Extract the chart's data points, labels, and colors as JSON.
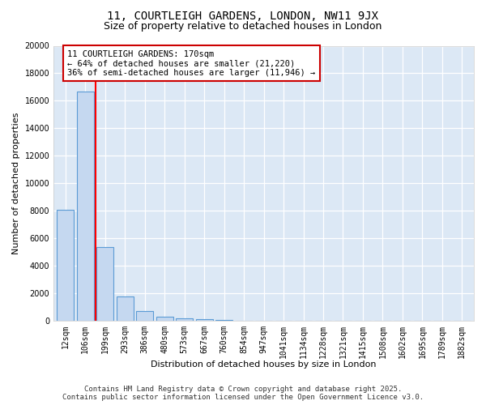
{
  "title_line1": "11, COURTLEIGH GARDENS, LONDON, NW11 9JX",
  "title_line2": "Size of property relative to detached houses in London",
  "xlabel": "Distribution of detached houses by size in London",
  "ylabel": "Number of detached properties",
  "categories": [
    "12sqm",
    "106sqm",
    "199sqm",
    "293sqm",
    "386sqm",
    "480sqm",
    "573sqm",
    "667sqm",
    "760sqm",
    "854sqm",
    "947sqm",
    "1041sqm",
    "1134sqm",
    "1228sqm",
    "1321sqm",
    "1415sqm",
    "1508sqm",
    "1602sqm",
    "1695sqm",
    "1789sqm",
    "1882sqm"
  ],
  "values": [
    8100,
    16700,
    5350,
    1800,
    700,
    320,
    200,
    130,
    50,
    0,
    0,
    0,
    0,
    0,
    0,
    0,
    0,
    0,
    0,
    0,
    0
  ],
  "bar_color": "#c5d8f0",
  "bar_edge_color": "#5b9bd5",
  "red_line_x": 1.5,
  "annotation_text": "11 COURTLEIGH GARDENS: 170sqm\n← 64% of detached houses are smaller (21,220)\n36% of semi-detached houses are larger (11,946) →",
  "annotation_box_color": "#ffffff",
  "annotation_box_edge_color": "#cc0000",
  "ylim": [
    0,
    20000
  ],
  "yticks": [
    0,
    2000,
    4000,
    6000,
    8000,
    10000,
    12000,
    14000,
    16000,
    18000,
    20000
  ],
  "fig_background_color": "#ffffff",
  "plot_background_color": "#dce8f5",
  "footer_line1": "Contains HM Land Registry data © Crown copyright and database right 2025.",
  "footer_line2": "Contains public sector information licensed under the Open Government Licence v3.0.",
  "title_fontsize": 10,
  "subtitle_fontsize": 9,
  "axis_label_fontsize": 8,
  "tick_fontsize": 7,
  "annotation_fontsize": 7.5,
  "footer_fontsize": 6.5
}
